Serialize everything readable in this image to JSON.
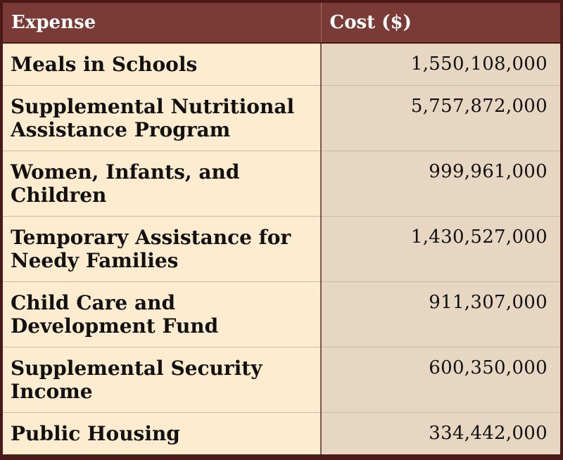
{
  "table": {
    "headers": {
      "expense": "Expense",
      "cost": "Cost ($)"
    },
    "rows": [
      {
        "expense": "Meals in Schools",
        "cost": "1,550,108,000"
      },
      {
        "expense": "Supplemental Nutritional Assistance Program",
        "cost": "5,757,872,000"
      },
      {
        "expense": "Women, Infants, and Children",
        "cost": "999,961,000"
      },
      {
        "expense": "Temporary Assistance for Needy Families",
        "cost": "1,430,527,000"
      },
      {
        "expense": "Child Care and Development Fund",
        "cost": "911,307,000"
      },
      {
        "expense": "Supplemental Security Income",
        "cost": "600,350,000"
      },
      {
        "expense": "Public Housing",
        "cost": "334,442,000"
      }
    ]
  },
  "colors": {
    "header_bg": "#7a3b36",
    "expense_bg": "#fdeccf",
    "cost_bg": "#e6d6c2",
    "border": "#4a1a16"
  }
}
